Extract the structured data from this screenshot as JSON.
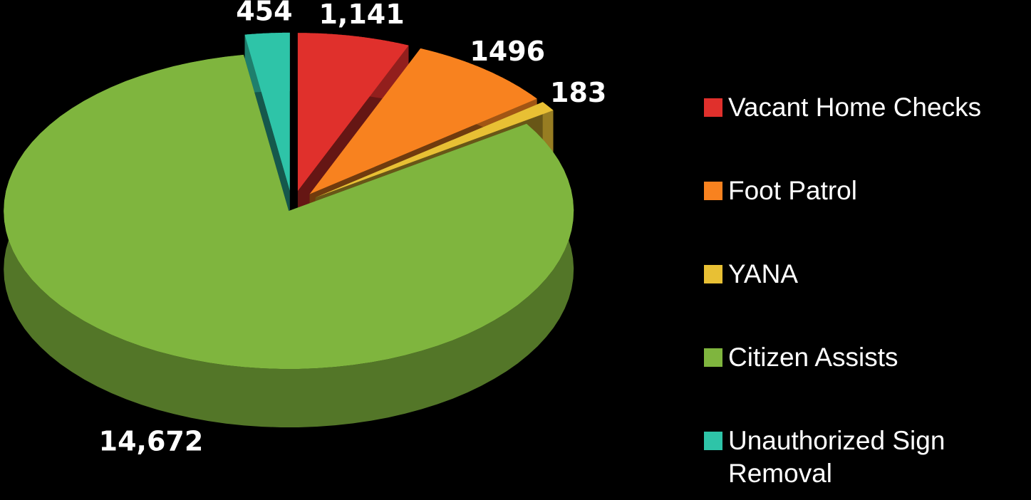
{
  "chart_data": {
    "type": "pie",
    "categories": [
      "Vacant Home Checks",
      "Foot Patrol",
      "YANA",
      "Citizen Assists",
      "Unauthorized Sign Removal"
    ],
    "values": [
      1141,
      1496,
      183,
      14672,
      454
    ],
    "value_labels": [
      "1,141",
      "1496",
      "183",
      "14,672",
      "454"
    ],
    "colors": [
      "#e0302c",
      "#f8821f",
      "#e8c034",
      "#7fb53e",
      "#2ec4a8"
    ],
    "legend": "right"
  }
}
